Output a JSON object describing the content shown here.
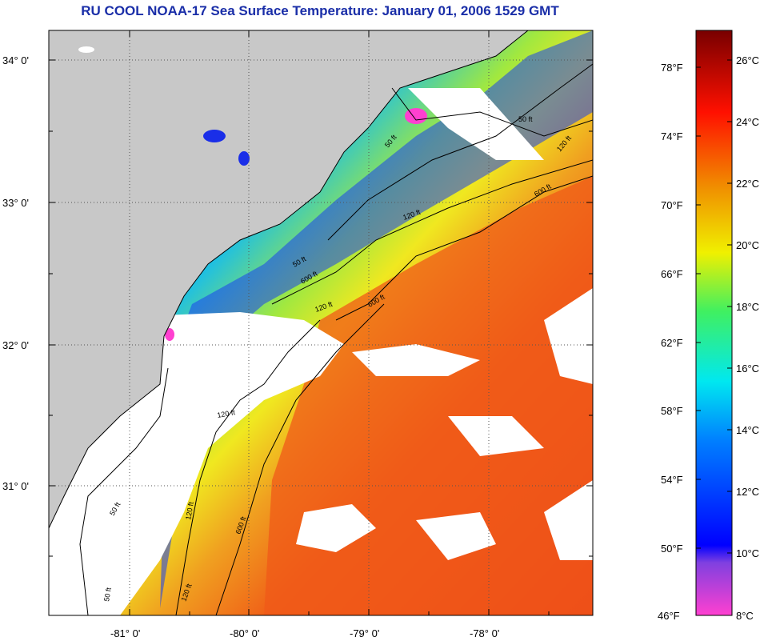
{
  "title": "RU COOL  NOAA-17  Sea Surface Temperature:  January 01, 2006 1529 GMT",
  "map": {
    "lat_labels": [
      "34° 0'",
      "33° 0'",
      "32° 0'",
      "31° 0'"
    ],
    "lon_labels": [
      "-81° 0'",
      "-80° 0'",
      "-79° 0'",
      "-78° 0'"
    ],
    "contour_labels": [
      "50 ft",
      "120 ft",
      "600 ft",
      "50 ft",
      "120 ft",
      "600 ft",
      "120 ft",
      "50 ft",
      "120 ft",
      "600 ft",
      "120 ft",
      "50 ft",
      "120 ft",
      "600 ft",
      "50 ft"
    ],
    "colors": {
      "land": "#c8c8c8",
      "cloud": "#ffffff",
      "cold": "#1a2ee8",
      "warm": "#f06018"
    }
  },
  "colorbar": {
    "fahrenheit_labels": [
      "78°F",
      "74°F",
      "70°F",
      "66°F",
      "62°F",
      "58°F",
      "54°F",
      "50°F",
      "46°F"
    ],
    "celsius_labels": [
      "26°C",
      "24°C",
      "22°C",
      "20°C",
      "18°C",
      "16°C",
      "14°C",
      "12°C",
      "10°C",
      "8°C"
    ]
  }
}
